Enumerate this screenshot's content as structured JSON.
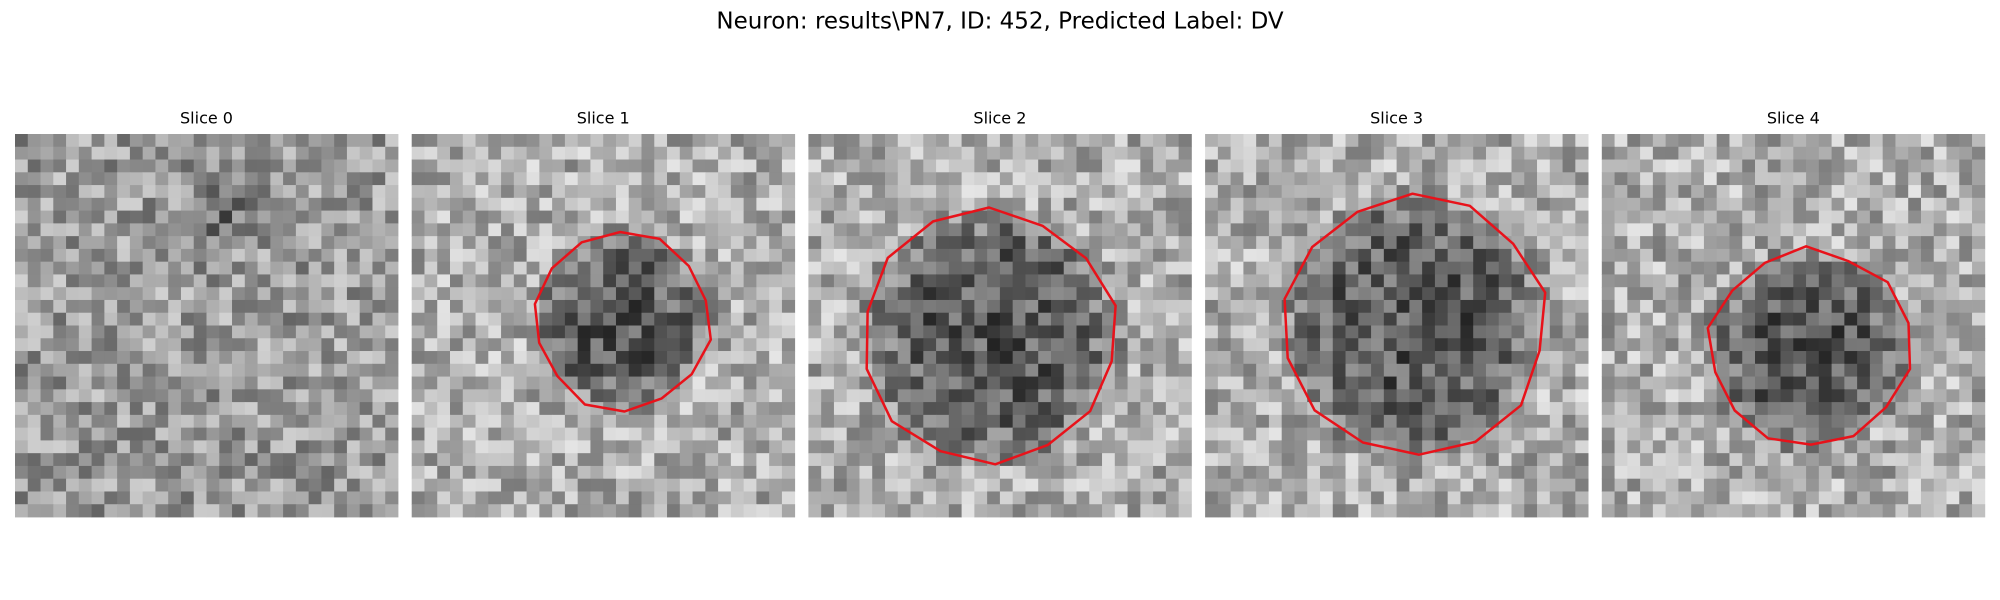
{
  "figure": {
    "title": "Neuron: results\\PN7, ID: 452, Predicted Label: DV",
    "panels": [
      {
        "title": "Slice 0"
      },
      {
        "title": "Slice 1"
      },
      {
        "title": "Slice 2"
      },
      {
        "title": "Slice 3"
      },
      {
        "title": "Slice 4"
      }
    ]
  }
}
